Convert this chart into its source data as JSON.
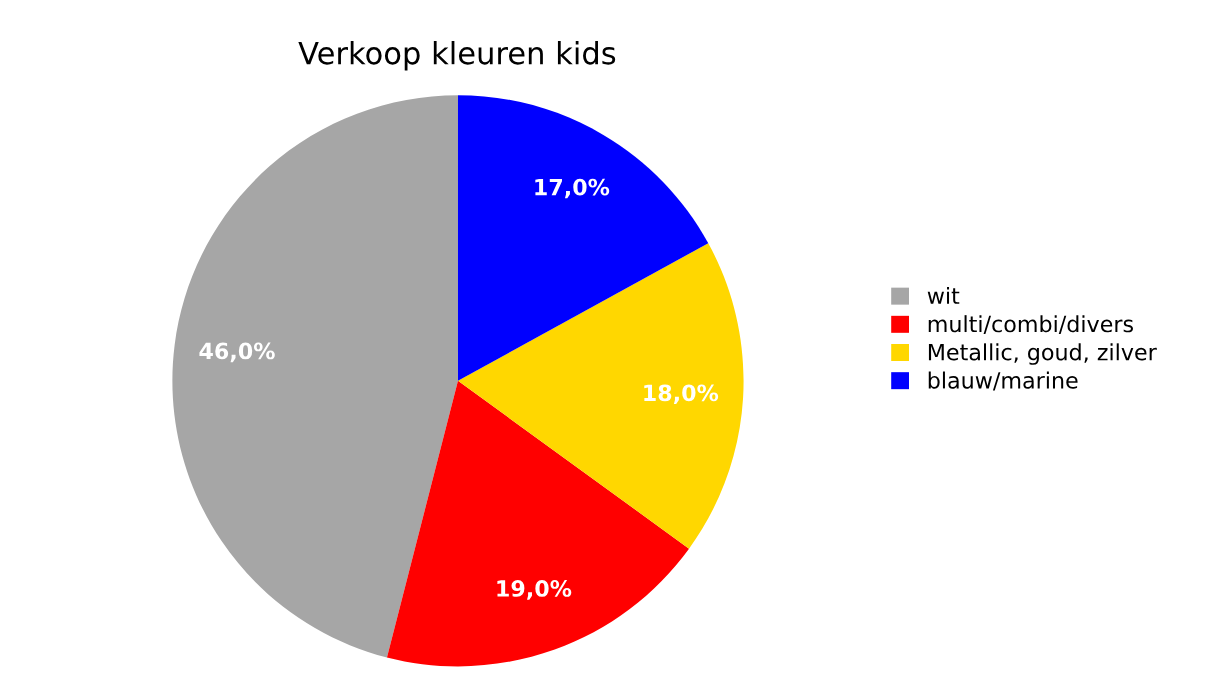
{
  "chart_data": {
    "type": "pie",
    "title": "Verkoop kleuren kids",
    "categories": [
      "wit",
      "multi/combi/divers",
      "Metallic, goud, zilver",
      "blauw/marine"
    ],
    "values": [
      46,
      19,
      18,
      17
    ],
    "value_labels": [
      "46,0%",
      "19,0%",
      "18,0%",
      "17,0%"
    ],
    "colors": [
      "#a6a6a6",
      "#ff0000",
      "#ffd700",
      "#0000ff"
    ],
    "legend": "right"
  }
}
